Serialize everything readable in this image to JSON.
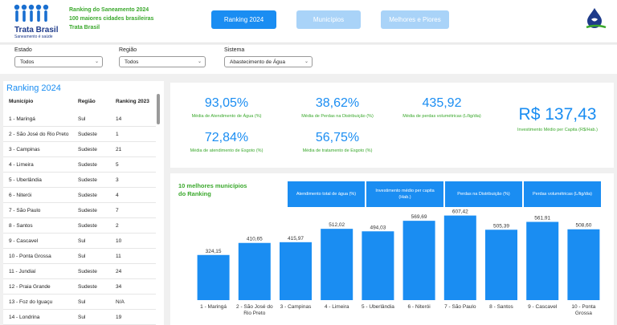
{
  "header": {
    "logo_name": "Trata Brasil",
    "logo_tagline": "Saneamento é saúde",
    "lines": [
      "Ranking do Saneamento 2024",
      "100 maiores cidades brasileiras",
      "Trata Brasil"
    ],
    "nav": [
      {
        "label": "Ranking 2024",
        "active": true
      },
      {
        "label": "Municípios",
        "active": false
      },
      {
        "label": "Melhores e Piores",
        "active": false
      }
    ]
  },
  "filters": {
    "estado": {
      "label": "Estado",
      "value": "Todos"
    },
    "regiao": {
      "label": "Região",
      "value": "Todos"
    },
    "sistema": {
      "label": "Sistema",
      "value": "Abastecimento de Água"
    }
  },
  "ranking": {
    "title": "Ranking 2024",
    "columns": [
      "Município",
      "Região",
      "Ranking 2023"
    ],
    "rows": [
      [
        "1 - Maringá",
        "Sul",
        "14"
      ],
      [
        "2 - São José do Rio Preto",
        "Sudeste",
        "1"
      ],
      [
        "3 - Campinas",
        "Sudeste",
        "21"
      ],
      [
        "4 - Limeira",
        "Sudeste",
        "5"
      ],
      [
        "5 - Uberlândia",
        "Sudeste",
        "3"
      ],
      [
        "6 - Niterói",
        "Sudeste",
        "4"
      ],
      [
        "7 - São Paulo",
        "Sudeste",
        "7"
      ],
      [
        "8 - Santos",
        "Sudeste",
        "2"
      ],
      [
        "9 - Cascavel",
        "Sul",
        "10"
      ],
      [
        "10 - Ponta Grossa",
        "Sul",
        "11"
      ],
      [
        "11 - Jundiaí",
        "Sudeste",
        "24"
      ],
      [
        "12 - Praia Grande",
        "Sudeste",
        "34"
      ],
      [
        "13 - Foz do Iguaçu",
        "Sul",
        "N/A"
      ],
      [
        "14 - Londrina",
        "Sul",
        "19"
      ]
    ]
  },
  "kpis": {
    "agua": {
      "value": "93,05%",
      "label": "Média de Atendimento de Água (%)"
    },
    "perdas": {
      "value": "38,62%",
      "label": "Média de Perdas na Distribuição (%)"
    },
    "volumetricas": {
      "value": "435,92",
      "label": "Média de perdas volumétricas (L/lig/dia)"
    },
    "esgoto": {
      "value": "72,84%",
      "label": "Média de atendimento de Esgoto (%)"
    },
    "tratamento": {
      "value": "56,75%",
      "label": "Média de tratamento de Esgoto (%)"
    },
    "investimento": {
      "value": "R$ 137,43",
      "label": "Investimento Médio per Capita (R$/Hab.)"
    }
  },
  "chart_panel": {
    "title_line1": "10 melhores municípios",
    "title_line2": "do Ranking",
    "metric_buttons": [
      [
        "Atendimento total de água (%)"
      ],
      [
        "Investimento médio per capita",
        "(Hab.)"
      ],
      [
        "Perdas na Distribuição (%)"
      ],
      [
        "Perdas volumétricas (L/lig/dia)"
      ]
    ]
  },
  "chart_data": {
    "type": "bar",
    "title": "10 melhores municípios do Ranking",
    "categories": [
      [
        "1 - Maringá"
      ],
      [
        "2 - São José do",
        "Rio Preto"
      ],
      [
        "3 - Campinas"
      ],
      [
        "4 - Limeira"
      ],
      [
        "5 - Uberlândia"
      ],
      [
        "6 - Niterói"
      ],
      [
        "7 - São Paulo"
      ],
      [
        "8 - Santos"
      ],
      [
        "9 - Cascavel"
      ],
      [
        "10 - Ponta",
        "Grossa"
      ]
    ],
    "values": [
      324.15,
      410.65,
      415.97,
      512.02,
      494.03,
      569.69,
      607.42,
      505.39,
      561.91,
      508.6
    ],
    "value_labels": [
      "324,15",
      "410,65",
      "415,97",
      "512,02",
      "494,03",
      "569,69",
      "607,42",
      "505,39",
      "561,91",
      "508,60"
    ],
    "ylim": [
      0,
      680
    ],
    "grid": false,
    "legend": "none",
    "bar_color": "#1a8df2"
  },
  "colors": {
    "accent": "#1a8df2",
    "accent_light": "#a9d3f8",
    "green": "#3aa82c",
    "logo_blue": "#1d3a8a"
  }
}
